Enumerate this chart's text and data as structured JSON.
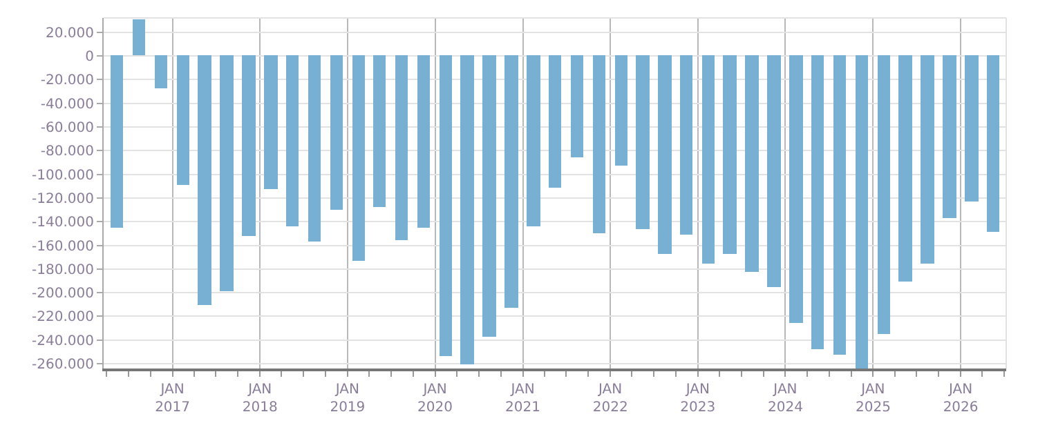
{
  "chart_data": {
    "type": "bar",
    "color": "#78b0d4",
    "x": [
      "2016-05-15",
      "2016-08-15",
      "2016-11-15",
      "2017-02-15",
      "2017-05-15",
      "2017-08-15",
      "2017-11-15",
      "2018-02-15",
      "2018-05-15",
      "2018-08-15",
      "2018-11-15",
      "2019-02-15",
      "2019-05-15",
      "2019-08-15",
      "2019-11-15",
      "2020-02-15",
      "2020-05-15",
      "2020-08-15",
      "2020-11-15",
      "2021-02-15",
      "2021-05-15",
      "2021-08-15",
      "2021-11-15",
      "2022-02-15",
      "2022-05-15",
      "2022-08-15",
      "2022-11-15",
      "2023-02-15",
      "2023-05-15",
      "2023-08-15",
      "2023-11-15",
      "2024-02-15",
      "2024-05-15",
      "2024-08-15",
      "2024-11-15",
      "2025-02-15",
      "2025-05-15",
      "2025-08-15",
      "2025-11-15",
      "2026-02-15",
      "2026-05-15"
    ],
    "values": [
      -145000,
      31000,
      -28000,
      -109000,
      -210000,
      -199000,
      -152000,
      -113000,
      -144000,
      -157000,
      -130000,
      -173000,
      -128000,
      -156000,
      -145000,
      -253000,
      -261000,
      -237000,
      -213000,
      -144000,
      -111000,
      -86000,
      -150000,
      -93000,
      -146000,
      -167000,
      -151000,
      -175000,
      -167000,
      -182000,
      -195000,
      -226000,
      -248000,
      -252000,
      -264000,
      -235000,
      -191000,
      -176000,
      -137000,
      -123000,
      -149000
    ],
    "xlim": [
      "2016-03-20",
      "2026-07-10"
    ],
    "xticks": [
      {
        "value": "2017-01-01",
        "label": "JAN\n2017"
      },
      {
        "value": "2018-01-01",
        "label": "JAN\n2018"
      },
      {
        "value": "2019-01-01",
        "label": "JAN\n2019"
      },
      {
        "value": "2020-01-01",
        "label": "JAN\n2020"
      },
      {
        "value": "2021-01-01",
        "label": "JAN\n2021"
      },
      {
        "value": "2022-01-01",
        "label": "JAN\n2022"
      },
      {
        "value": "2023-01-01",
        "label": "JAN\n2023"
      },
      {
        "value": "2024-01-01",
        "label": "JAN\n2024"
      },
      {
        "value": "2025-01-01",
        "label": "JAN\n2025"
      },
      {
        "value": "2026-01-01",
        "label": "JAN\n2026"
      }
    ],
    "ylim": [
      -264000,
      32000
    ],
    "yticks": [
      {
        "value": 20000,
        "label": "20.000"
      },
      0,
      {
        "value": -20000,
        "label": "-20.000"
      },
      {
        "value": -40000,
        "label": "-40.000"
      },
      {
        "value": -60000,
        "label": "-60.000"
      },
      {
        "value": -80000,
        "label": "-80.000"
      },
      {
        "value": -100000,
        "label": "-100.000"
      },
      {
        "value": -120000,
        "label": "-120.000"
      },
      {
        "value": -140000,
        "label": "-140.000"
      },
      {
        "value": -160000,
        "label": "-160.000"
      },
      {
        "value": -180000,
        "label": "-180.000"
      },
      {
        "value": -200000,
        "label": "-200.000"
      },
      {
        "value": -220000,
        "label": "-220.000"
      },
      {
        "value": -240000,
        "label": "-240.000"
      },
      {
        "value": -260000,
        "label": "-260.000"
      }
    ],
    "grid": true
  }
}
